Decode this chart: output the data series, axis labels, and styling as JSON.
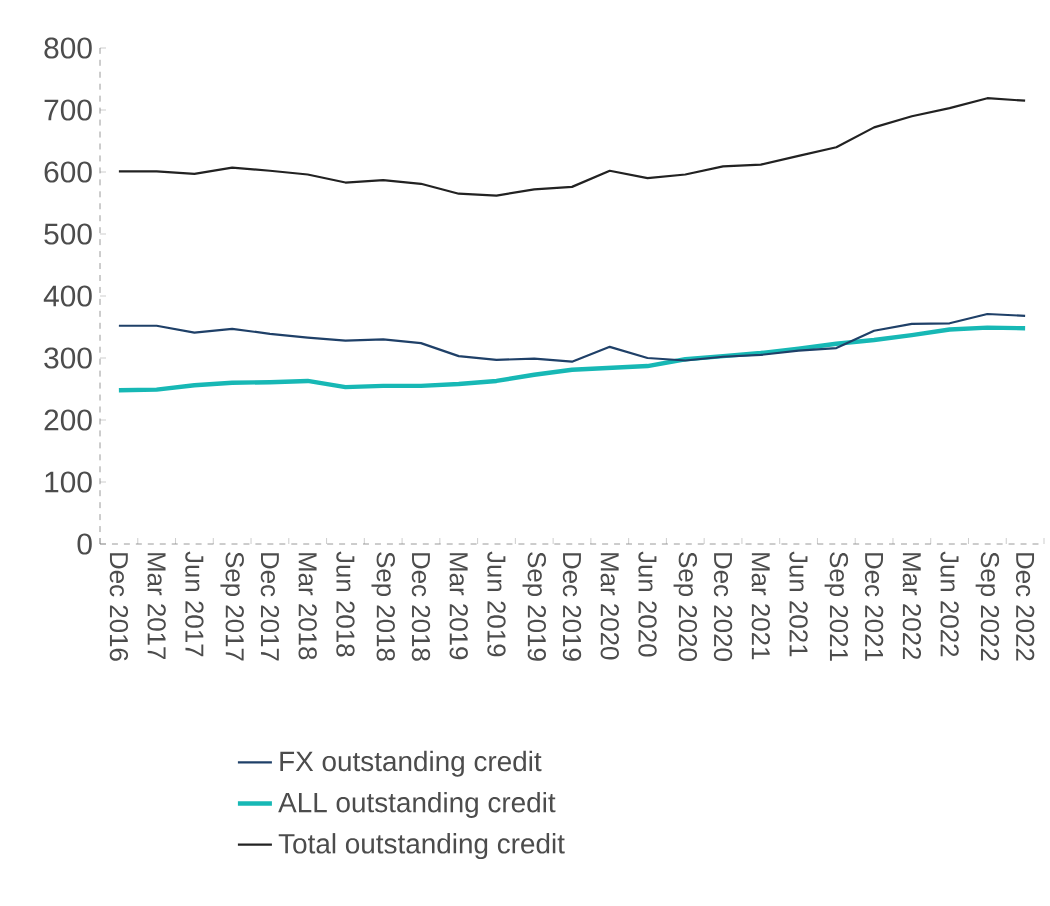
{
  "chart_data": {
    "type": "line",
    "categories": [
      "Dec 2016",
      "Mar 2017",
      "Jun 2017",
      "Sep 2017",
      "Dec 2017",
      "Mar 2018",
      "Jun 2018",
      "Sep 2018",
      "Dec 2018",
      "Mar 2019",
      "Jun 2019",
      "Sep 2019",
      "Dec 2019",
      "Mar 2020",
      "Jun 2020",
      "Sep 2020",
      "Dec 2020",
      "Mar 2021",
      "Jun 2021",
      "Sep 2021",
      "Dec 2021",
      "Mar 2022",
      "Jun 2022",
      "Sep 2022",
      "Dec 2022"
    ],
    "series": [
      {
        "name": "FX outstanding credit",
        "color": "#1f4068",
        "values": [
          352,
          352,
          341,
          347,
          339,
          333,
          328,
          330,
          324,
          303,
          297,
          299,
          294,
          318,
          300,
          296,
          302,
          305,
          312,
          316,
          344,
          355,
          356,
          371,
          368
        ]
      },
      {
        "name": "ALL outstanding credit",
        "color": "#17b8b5",
        "values": [
          248,
          249,
          256,
          260,
          261,
          263,
          253,
          255,
          255,
          258,
          263,
          273,
          281,
          284,
          287,
          298,
          303,
          308,
          315,
          323,
          329,
          337,
          346,
          349,
          348
        ]
      },
      {
        "name": "Total outstanding credit",
        "color": "#222222",
        "values": [
          601,
          601,
          597,
          607,
          602,
          596,
          583,
          587,
          581,
          565,
          562,
          572,
          576,
          602,
          590,
          596,
          609,
          612,
          626,
          640,
          672,
          690,
          703,
          719,
          715
        ]
      }
    ],
    "ylim": [
      0,
      800
    ],
    "yticks": [
      0,
      100,
      200,
      300,
      400,
      500,
      600,
      700,
      800
    ],
    "grid": false,
    "legend": "bottom",
    "marker": "none",
    "line_style": "solid"
  }
}
